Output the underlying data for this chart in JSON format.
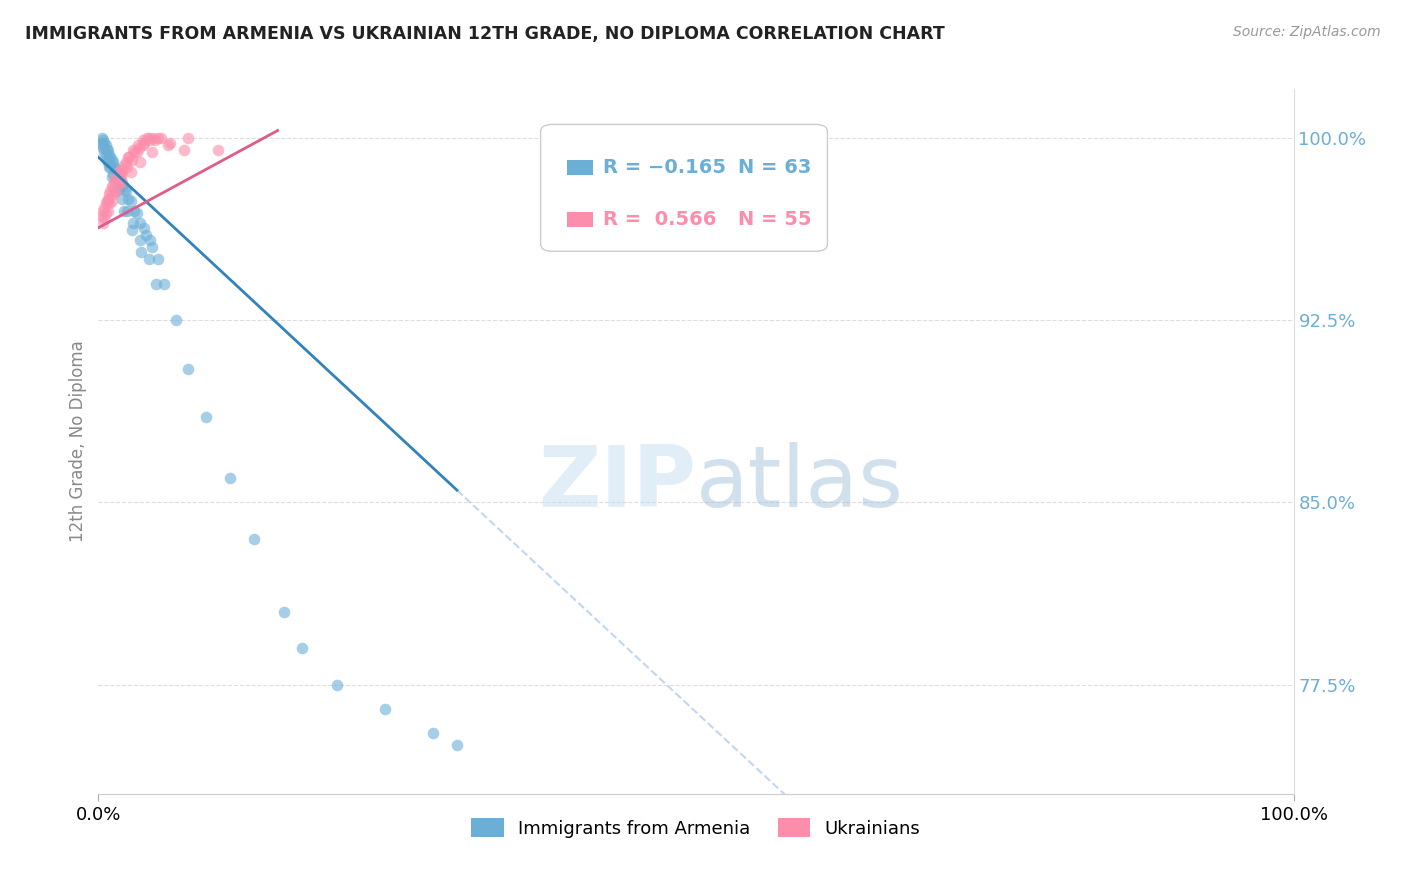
{
  "title": "IMMIGRANTS FROM ARMENIA VS UKRAINIAN 12TH GRADE, NO DIPLOMA CORRELATION CHART",
  "source": "Source: ZipAtlas.com",
  "legend_label1": "Immigrants from Armenia",
  "legend_label2": "Ukrainians",
  "blue_color": "#6baed6",
  "pink_color": "#fc8dab",
  "blue_line_color": "#3182bd",
  "pink_line_color": "#de5b8a",
  "dashed_line_color": "#b8d0ea",
  "ylabel": "12th Grade, No Diploma",
  "ytick_labels": [
    "100.0%",
    "92.5%",
    "85.0%",
    "77.5%"
  ],
  "ytick_values": [
    100.0,
    92.5,
    85.0,
    77.5
  ],
  "xlim": [
    0,
    100
  ],
  "ylim": [
    73,
    102
  ],
  "r1": "-0.165",
  "n1": "63",
  "r2": "0.566",
  "n2": "55",
  "blue_x": [
    0.5,
    0.8,
    1.0,
    1.2,
    1.5,
    1.8,
    2.0,
    2.3,
    2.5,
    3.0,
    3.5,
    4.0,
    4.5,
    5.0,
    0.3,
    0.4,
    0.6,
    0.7,
    0.9,
    1.1,
    1.3,
    1.6,
    1.9,
    2.2,
    2.7,
    3.2,
    3.8,
    4.3,
    0.2,
    0.4,
    0.6,
    0.8,
    1.0,
    1.2,
    1.4,
    1.7,
    2.0,
    2.4,
    2.9,
    3.5,
    4.2,
    5.5,
    0.3,
    0.5,
    0.7,
    0.9,
    1.1,
    1.5,
    2.1,
    2.8,
    3.6,
    4.8,
    6.5,
    7.5,
    9.0,
    11.0,
    13.0,
    15.5,
    17.0,
    20.0,
    24.0,
    28.0,
    30.0
  ],
  "blue_y": [
    99.8,
    99.5,
    99.2,
    99.0,
    98.7,
    98.4,
    98.0,
    97.8,
    97.5,
    97.0,
    96.5,
    96.0,
    95.5,
    95.0,
    100.0,
    99.9,
    99.7,
    99.5,
    99.3,
    99.1,
    98.8,
    98.5,
    98.2,
    97.9,
    97.4,
    96.9,
    96.3,
    95.8,
    99.8,
    99.6,
    99.3,
    99.0,
    98.8,
    98.5,
    98.2,
    97.9,
    97.5,
    97.0,
    96.5,
    95.8,
    95.0,
    94.0,
    99.7,
    99.4,
    99.1,
    98.8,
    98.4,
    97.8,
    97.0,
    96.2,
    95.3,
    94.0,
    92.5,
    90.5,
    88.5,
    86.0,
    83.5,
    80.5,
    79.0,
    77.5,
    76.5,
    75.5,
    75.0
  ],
  "pink_x": [
    0.4,
    0.6,
    0.8,
    1.0,
    1.2,
    1.5,
    1.8,
    2.0,
    2.3,
    2.6,
    3.0,
    3.4,
    3.8,
    4.2,
    4.7,
    5.2,
    0.3,
    0.5,
    0.7,
    0.9,
    1.1,
    1.4,
    1.7,
    2.1,
    2.5,
    2.9,
    3.3,
    3.7,
    4.1,
    4.6,
    0.4,
    0.6,
    0.9,
    1.2,
    1.6,
    2.0,
    2.4,
    2.8,
    3.2,
    3.7,
    4.3,
    5.0,
    6.0,
    7.2,
    0.5,
    0.8,
    1.1,
    1.5,
    2.0,
    2.7,
    3.5,
    4.5,
    5.8,
    7.5,
    10.0
  ],
  "pink_y": [
    97.0,
    97.3,
    97.5,
    97.8,
    98.0,
    98.3,
    98.5,
    98.7,
    99.0,
    99.2,
    99.4,
    99.6,
    99.8,
    100.0,
    99.9,
    100.0,
    96.8,
    97.1,
    97.4,
    97.7,
    98.0,
    98.3,
    98.6,
    98.9,
    99.2,
    99.5,
    99.7,
    99.9,
    100.0,
    100.0,
    96.5,
    96.9,
    97.3,
    97.7,
    98.1,
    98.5,
    98.8,
    99.1,
    99.4,
    99.7,
    99.9,
    100.0,
    99.8,
    99.5,
    96.7,
    97.0,
    97.4,
    97.8,
    98.2,
    98.6,
    99.0,
    99.4,
    99.7,
    100.0,
    99.5
  ]
}
